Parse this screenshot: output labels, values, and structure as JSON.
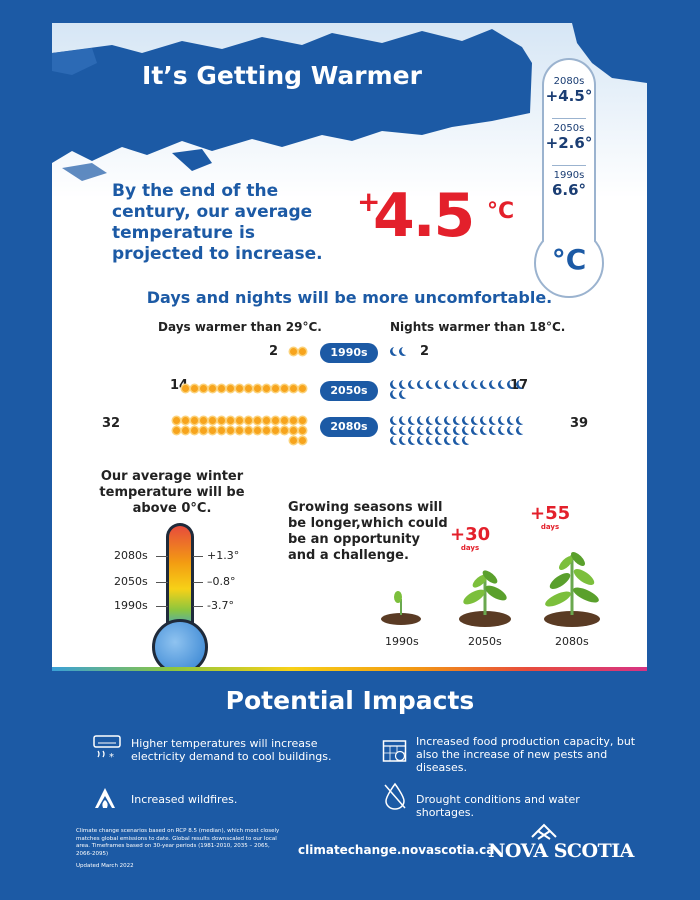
{
  "title": "It’s Getting Warmer",
  "thermometer": {
    "levels": [
      {
        "year": "2080s",
        "value": "+4.5°"
      },
      {
        "year": "2050s",
        "value": "+2.6°"
      },
      {
        "year": "1990s",
        "value": "6.6°"
      }
    ],
    "unit": "°C"
  },
  "century": {
    "text": "By the end of the century, our average temperature is projected to increase.",
    "plus": "+",
    "value": "4.5",
    "unit": "°C"
  },
  "days_nights": {
    "heading": "Days and nights will be more uncomfortable.",
    "days_label": "Days warmer than 29°C.",
    "nights_label": "Nights warmer than 18°C.",
    "rows": [
      {
        "period": "1990s",
        "days": 2,
        "nights": 2
      },
      {
        "period": "2050s",
        "days": 14,
        "nights": 17
      },
      {
        "period": "2080s",
        "days": 32,
        "nights": 39
      }
    ]
  },
  "winter": {
    "text": "Our average winter temperature will be above 0°C.",
    "levels": [
      {
        "year": "2080s",
        "value": "+1.3°"
      },
      {
        "year": "2050s",
        "value": "–0.8°"
      },
      {
        "year": "1990s",
        "value": "-3.7°"
      }
    ]
  },
  "growing": {
    "text": "Growing seasons will be longer,which could be an opportunity and a challenge.",
    "plants": [
      {
        "year": "1990s",
        "plus": "",
        "unit": ""
      },
      {
        "year": "2050s",
        "plus": "+30",
        "unit": "days"
      },
      {
        "year": "2080s",
        "plus": "+55",
        "unit": "days"
      }
    ]
  },
  "impacts": {
    "heading": "Potential Impacts",
    "items": [
      {
        "icon": "air-conditioner-icon",
        "text": "Higher temperatures will increase electricity demand to cool buildings."
      },
      {
        "icon": "calendar-bug-icon",
        "text": "Increased food production capacity, but also the increase of new pests and diseases."
      },
      {
        "icon": "wildfire-icon",
        "text": "Increased wildfires."
      },
      {
        "icon": "drought-icon",
        "text": "Drought conditions and water shortages."
      }
    ]
  },
  "footer": {
    "note": "Climate change scenarios based on RCP 8.5 (median), which most closely matches global emissions to date. Global results downscaled to our local area. Timeframes based on 30-year periods (1981-2010, 2035 – 2065, 2066-2095)",
    "updated": "Updated March 2022",
    "url": "climatechange.novascotia.ca",
    "brand": "NOVA SCOTIA"
  },
  "colors": {
    "brand_blue": "#1c5aa5",
    "accent_red": "#e3202b",
    "sun": "#f7a41d"
  }
}
